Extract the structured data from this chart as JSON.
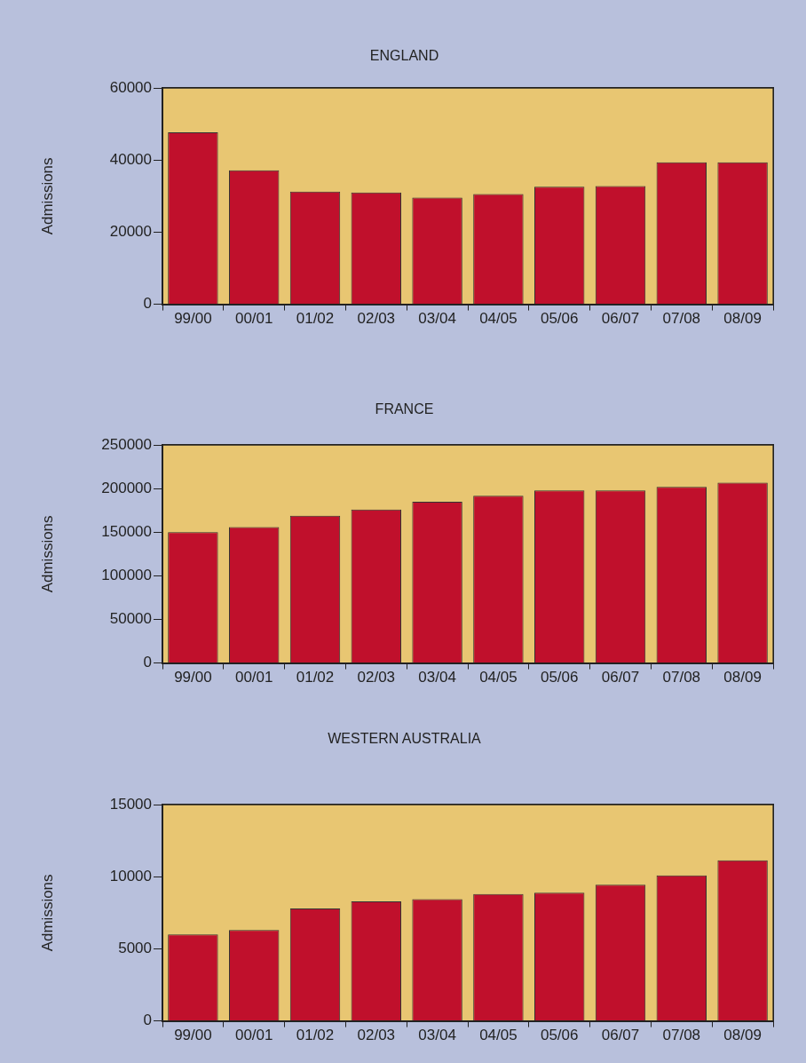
{
  "chart_data": [
    {
      "type": "bar",
      "title": "ENGLAND",
      "ylabel": "Admissions",
      "categories": [
        "99/00",
        "00/01",
        "01/02",
        "02/03",
        "03/04",
        "04/05",
        "05/06",
        "06/07",
        "07/08",
        "08/09"
      ],
      "values": [
        47700,
        37200,
        31300,
        31000,
        29600,
        30600,
        32600,
        32800,
        39400,
        39400
      ],
      "color": "#c0102c",
      "ylim": [
        0,
        60000
      ],
      "yticks": [
        0,
        20000,
        40000,
        60000
      ]
    },
    {
      "type": "bar",
      "title": "FRANCE",
      "ylabel": "Admissions",
      "categories": [
        "99/00",
        "00/01",
        "01/02",
        "02/03",
        "03/04",
        "04/05",
        "05/06",
        "06/07",
        "07/08",
        "08/09"
      ],
      "values": [
        150000,
        156000,
        169000,
        176000,
        185000,
        192000,
        198000,
        198000,
        202000,
        207000
      ],
      "color": "#c0102c",
      "ylim": [
        0,
        250000
      ],
      "yticks": [
        0,
        50000,
        100000,
        150000,
        200000,
        250000
      ]
    },
    {
      "type": "bar",
      "title": "WESTERN AUSTRALIA",
      "ylabel": "Admissions",
      "categories": [
        "99/00",
        "00/01",
        "01/02",
        "02/03",
        "03/04",
        "04/05",
        "05/06",
        "06/07",
        "07/08",
        "08/09"
      ],
      "values": [
        6000,
        6300,
        7800,
        8300,
        8450,
        8800,
        8900,
        9450,
        10100,
        11150
      ],
      "color": "#c0102c",
      "ylim": [
        0,
        15000
      ],
      "yticks": [
        0,
        5000,
        10000,
        15000
      ]
    }
  ]
}
